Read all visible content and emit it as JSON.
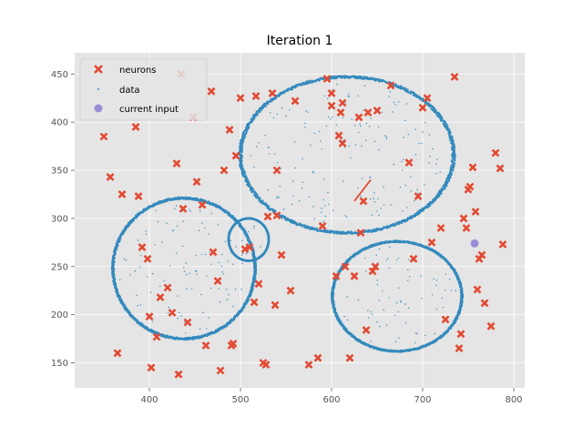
{
  "chart_data": {
    "type": "scatter",
    "title": "Iteration 1",
    "xlabel": "",
    "ylabel": "",
    "xlim": [
      318,
      812
    ],
    "ylim": [
      124,
      472
    ],
    "xticks": [
      400,
      500,
      600,
      700,
      800
    ],
    "yticks": [
      150,
      200,
      250,
      300,
      350,
      400,
      450
    ],
    "grid": true,
    "legend_position": "top-left",
    "colors": {
      "background": "#e5e5e5",
      "grid": "#ffffff",
      "neurons": "#e24a33",
      "data": "#348abd",
      "current_input": "#988ed5",
      "link": "#e24a33"
    },
    "series": [
      {
        "name": "neurons",
        "marker": "x",
        "x": [
          350,
          357,
          365,
          370,
          385,
          388,
          392,
          398,
          400,
          402,
          408,
          412,
          420,
          425,
          430,
          432,
          435,
          437,
          442,
          448,
          452,
          458,
          462,
          468,
          470,
          475,
          478,
          482,
          488,
          490,
          492,
          495,
          500,
          505,
          510,
          515,
          517,
          520,
          525,
          528,
          530,
          535,
          538,
          540,
          540,
          545,
          555,
          560,
          575,
          585,
          590,
          595,
          600,
          600,
          605,
          608,
          610,
          612,
          612,
          615,
          620,
          625,
          630,
          632,
          635,
          638,
          640,
          645,
          648,
          650,
          665,
          685,
          690,
          695,
          700,
          705,
          710,
          720,
          725,
          735,
          740,
          742,
          745,
          748,
          750,
          752,
          755,
          758,
          760,
          762,
          765,
          768,
          775,
          780,
          785,
          788
        ],
        "y": [
          385,
          343,
          160,
          325,
          395,
          323,
          270,
          258,
          198,
          145,
          177,
          218,
          228,
          202,
          357,
          138,
          450,
          310,
          192,
          405,
          338,
          314,
          168,
          432,
          265,
          235,
          142,
          350,
          392,
          168,
          170,
          365,
          425,
          268,
          270,
          213,
          427,
          232,
          150,
          148,
          302,
          430,
          210,
          350,
          303,
          262,
          225,
          422,
          148,
          155,
          292,
          445,
          417,
          430,
          240,
          386,
          410,
          378,
          420,
          250,
          155,
          240,
          405,
          285,
          318,
          184,
          410,
          245,
          250,
          412,
          438,
          358,
          258,
          323,
          415,
          425,
          275,
          290,
          195,
          447,
          165,
          180,
          300,
          290,
          330,
          333,
          353,
          307,
          226,
          258,
          262,
          212,
          188,
          368,
          352,
          273
        ]
      },
      {
        "name": "data",
        "marker": "."
      },
      {
        "name": "current input",
        "marker": "o",
        "x": [
          757
        ],
        "y": [
          274
        ]
      }
    ],
    "link": {
      "x": [
        625,
        643
      ],
      "y": [
        318,
        340
      ]
    },
    "clusters": [
      {
        "cx": 617,
        "cy": 366,
        "rx": 117,
        "ry": 81
      },
      {
        "cx": 438,
        "cy": 248,
        "rx": 78,
        "ry": 73
      },
      {
        "cx": 509,
        "cy": 278,
        "rx": 22,
        "ry": 22
      },
      {
        "cx": 672,
        "cy": 219,
        "rx": 71,
        "ry": 57
      }
    ]
  }
}
